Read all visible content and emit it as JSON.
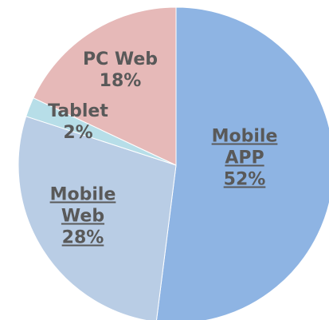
{
  "chart_data": {
    "type": "pie",
    "categories": [
      "Mobile APP",
      "Mobile Web",
      "Tablet",
      "PC Web"
    ],
    "values": [
      52,
      28,
      2,
      18
    ],
    "value_labels": [
      "52%",
      "28%",
      "2%",
      "18%"
    ],
    "colors": [
      "#8eb4e3",
      "#b9cde5",
      "#b7dee8",
      "#e6b9b8"
    ],
    "underlined": [
      true,
      true,
      false,
      false
    ]
  }
}
